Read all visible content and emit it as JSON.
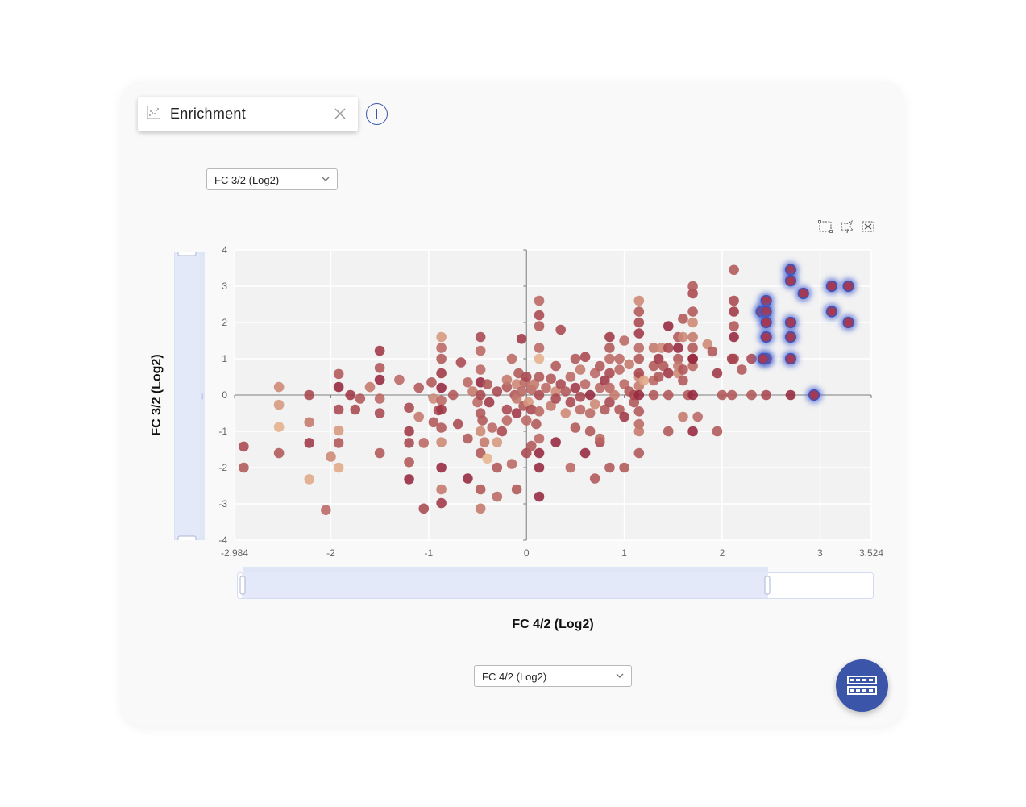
{
  "tab": {
    "label": "Enrichment",
    "icon": "scatter-chart-icon",
    "close_icon": "close-icon"
  },
  "add_tab_icon": "plus-circle-icon",
  "y_select": {
    "value": "FC 3/2 (Log2)"
  },
  "x_select": {
    "value": "FC 4/2 (Log2)"
  },
  "toolbar": {
    "icons": [
      "box-select-icon",
      "lasso-select-icon",
      "clear-selection-icon"
    ]
  },
  "fab_icon": "table-view-icon",
  "colors": {
    "accent": "#3b55a9",
    "point_dark": "#8c1734",
    "point_light": "#e9b78f",
    "highlight": "#4b63d0"
  },
  "range_sliders": {
    "x_selected": [
      0,
      0.83
    ],
    "y_selected": [
      0,
      1
    ]
  },
  "chart_data": {
    "type": "scatter",
    "xlabel": "FC 4/2 (Log2)",
    "ylabel": "FC 3/2 (Log2)",
    "xlim": [
      -2.984,
      3.524
    ],
    "ylim": [
      -4,
      4
    ],
    "xticks": [
      "-2.984",
      "-2",
      "-1",
      "0",
      "1",
      "2",
      "3",
      "3.524"
    ],
    "yticks": [
      "4",
      "3",
      "2",
      "1",
      "0",
      "-1",
      "-2",
      "-3",
      "-4"
    ],
    "grid": true,
    "points": [
      [
        -2.89,
        -1.42,
        0.7
      ],
      [
        -2.89,
        -2.0,
        0.6
      ],
      [
        -2.53,
        0.22,
        0.3
      ],
      [
        -2.53,
        -0.27,
        0.2
      ],
      [
        -2.53,
        -0.88,
        0.05
      ],
      [
        -2.53,
        -1.6,
        0.6
      ],
      [
        -2.22,
        0.0,
        0.7
      ],
      [
        -2.22,
        -0.75,
        0.4
      ],
      [
        -2.22,
        -1.32,
        0.8
      ],
      [
        -2.22,
        -2.32,
        0.1
      ],
      [
        -2.05,
        -3.17,
        0.5
      ],
      [
        -2.0,
        -1.7,
        0.3
      ],
      [
        -1.92,
        0.58,
        0.6
      ],
      [
        -1.92,
        0.22,
        0.9
      ],
      [
        -1.92,
        -0.4,
        0.7
      ],
      [
        -1.92,
        -0.98,
        0.2
      ],
      [
        -1.92,
        -1.32,
        0.6
      ],
      [
        -1.92,
        -2.0,
        0.1
      ],
      [
        -1.8,
        0.0,
        0.8
      ],
      [
        -1.75,
        -0.4,
        0.7
      ],
      [
        -1.7,
        -0.1,
        0.6
      ],
      [
        -1.6,
        0.22,
        0.4
      ],
      [
        -1.5,
        1.22,
        0.8
      ],
      [
        -1.5,
        0.75,
        0.6
      ],
      [
        -1.5,
        0.42,
        0.9
      ],
      [
        -1.5,
        -0.1,
        0.5
      ],
      [
        -1.5,
        -0.5,
        0.7
      ],
      [
        -1.5,
        -1.6,
        0.6
      ],
      [
        -1.3,
        0.42,
        0.5
      ],
      [
        -1.2,
        -0.35,
        0.7
      ],
      [
        -1.2,
        -1.0,
        0.8
      ],
      [
        -1.2,
        -1.32,
        0.7
      ],
      [
        -1.2,
        -1.85,
        0.6
      ],
      [
        -1.2,
        -2.32,
        0.9
      ],
      [
        -1.1,
        0.2,
        0.6
      ],
      [
        -1.1,
        -0.6,
        0.4
      ],
      [
        -1.05,
        -1.32,
        0.5
      ],
      [
        -1.05,
        -3.13,
        0.7
      ],
      [
        -0.97,
        0.35,
        0.6
      ],
      [
        -0.95,
        -0.1,
        0.3
      ],
      [
        -0.95,
        -0.75,
        0.6
      ],
      [
        -0.9,
        -0.42,
        0.7
      ],
      [
        -0.87,
        1.6,
        0.2
      ],
      [
        -0.87,
        1.3,
        0.5
      ],
      [
        -0.87,
        1.0,
        0.6
      ],
      [
        -0.87,
        0.6,
        0.8
      ],
      [
        -0.87,
        0.2,
        0.9
      ],
      [
        -0.87,
        -0.15,
        0.5
      ],
      [
        -0.87,
        -0.4,
        0.8
      ],
      [
        -0.87,
        -0.9,
        0.6
      ],
      [
        -0.87,
        -1.3,
        0.3
      ],
      [
        -0.87,
        -2.0,
        0.9
      ],
      [
        -0.87,
        -2.6,
        0.4
      ],
      [
        -0.87,
        -2.98,
        0.8
      ],
      [
        -0.75,
        0.0,
        0.6
      ],
      [
        -0.7,
        -0.8,
        0.7
      ],
      [
        -0.67,
        0.9,
        0.7
      ],
      [
        -0.6,
        -1.2,
        0.6
      ],
      [
        -0.6,
        0.35,
        0.5
      ],
      [
        -0.55,
        0.1,
        0.4
      ],
      [
        -0.5,
        -0.2,
        0.5
      ],
      [
        -0.45,
        -0.7,
        0.6
      ],
      [
        -0.43,
        -1.3,
        0.4
      ],
      [
        -0.6,
        -2.3,
        0.9
      ],
      [
        -0.47,
        0.7,
        0.5
      ],
      [
        -0.47,
        0.35,
        0.9
      ],
      [
        -0.47,
        0.0,
        0.7
      ],
      [
        -0.47,
        -0.5,
        0.6
      ],
      [
        -0.47,
        -1.0,
        0.3
      ],
      [
        -0.47,
        -1.6,
        0.6
      ],
      [
        -0.47,
        -2.6,
        0.6
      ],
      [
        -0.47,
        -3.13,
        0.4
      ],
      [
        -0.47,
        1.22,
        0.5
      ],
      [
        -0.47,
        1.6,
        0.7
      ],
      [
        -0.4,
        0.3,
        0.6
      ],
      [
        -0.38,
        -0.2,
        0.8
      ],
      [
        -0.35,
        -0.9,
        0.5
      ],
      [
        -0.3,
        0.1,
        0.7
      ],
      [
        -0.3,
        -1.3,
        0.2
      ],
      [
        -0.4,
        -1.75,
        0.02
      ],
      [
        -0.3,
        -2.0,
        0.6
      ],
      [
        -0.3,
        -2.8,
        0.5
      ],
      [
        -0.25,
        -1.0,
        0.7
      ],
      [
        -0.2,
        0.22,
        0.6
      ],
      [
        -0.2,
        0.42,
        0.4
      ],
      [
        -0.2,
        -0.4,
        0.7
      ],
      [
        -0.2,
        -0.7,
        0.5
      ],
      [
        -0.15,
        1.0,
        0.5
      ],
      [
        -0.15,
        -1.9,
        0.5
      ],
      [
        -0.12,
        0.0,
        0.6
      ],
      [
        -0.1,
        0.3,
        0.3
      ],
      [
        -0.1,
        -0.5,
        0.8
      ],
      [
        -0.1,
        -0.1,
        0.4
      ],
      [
        -0.1,
        -2.6,
        0.6
      ],
      [
        -0.08,
        0.6,
        0.6
      ],
      [
        -0.05,
        1.55,
        0.8
      ],
      [
        -0.05,
        0.1,
        0.5
      ],
      [
        -0.03,
        -0.3,
        0.6
      ],
      [
        -0.02,
        0.35,
        0.5
      ],
      [
        0.0,
        0.5,
        0.7
      ],
      [
        0.0,
        -0.7,
        0.5
      ],
      [
        0.0,
        -1.6,
        0.7
      ],
      [
        0.02,
        -0.2,
        0.2
      ],
      [
        0.05,
        0.15,
        0.5
      ],
      [
        0.05,
        -0.4,
        0.7
      ],
      [
        0.05,
        -1.4,
        0.6
      ],
      [
        0.08,
        0.3,
        0.4
      ],
      [
        0.1,
        -0.8,
        0.6
      ],
      [
        0.13,
        1.0,
        0.05
      ],
      [
        0.13,
        0.5,
        0.6
      ],
      [
        0.13,
        0.0,
        0.7
      ],
      [
        0.13,
        -0.45,
        0.5
      ],
      [
        0.13,
        -1.2,
        0.5
      ],
      [
        0.13,
        -2.0,
        0.9
      ],
      [
        0.13,
        -2.8,
        0.9
      ],
      [
        0.13,
        1.3,
        0.5
      ],
      [
        0.13,
        1.9,
        0.6
      ],
      [
        0.13,
        2.2,
        0.7
      ],
      [
        0.13,
        2.6,
        0.5
      ],
      [
        0.13,
        -1.6,
        0.9
      ],
      [
        0.2,
        0.2,
        0.5
      ],
      [
        0.25,
        -0.3,
        0.4
      ],
      [
        0.25,
        0.45,
        0.6
      ],
      [
        0.3,
        0.1,
        0.3
      ],
      [
        0.3,
        -0.1,
        0.7
      ],
      [
        0.3,
        0.8,
        0.6
      ],
      [
        0.3,
        -1.3,
        0.9
      ],
      [
        0.35,
        1.8,
        0.7
      ],
      [
        0.35,
        0.3,
        0.7
      ],
      [
        0.4,
        -0.5,
        0.3
      ],
      [
        0.4,
        0.1,
        0.6
      ],
      [
        0.45,
        0.5,
        0.5
      ],
      [
        0.45,
        -0.2,
        0.7
      ],
      [
        0.45,
        -2.0,
        0.5
      ],
      [
        0.5,
        1.0,
        0.6
      ],
      [
        0.5,
        -0.9,
        0.6
      ],
      [
        0.5,
        0.2,
        0.8
      ],
      [
        0.55,
        -0.4,
        0.5
      ],
      [
        0.55,
        0.7,
        0.4
      ],
      [
        0.55,
        -0.05,
        0.7
      ],
      [
        0.6,
        -1.6,
        0.9
      ],
      [
        0.6,
        1.05,
        0.7
      ],
      [
        0.6,
        0.3,
        0.5
      ],
      [
        0.65,
        -0.5,
        0.5
      ],
      [
        0.65,
        -1.0,
        0.6
      ],
      [
        0.65,
        0.0,
        0.9
      ],
      [
        0.7,
        0.6,
        0.5
      ],
      [
        0.7,
        -0.25,
        0.3
      ],
      [
        0.7,
        -2.3,
        0.6
      ],
      [
        0.75,
        0.8,
        0.6
      ],
      [
        0.75,
        0.2,
        0.5
      ],
      [
        0.8,
        -0.4,
        0.6
      ],
      [
        0.8,
        0.4,
        0.8
      ],
      [
        0.85,
        1.6,
        0.8
      ],
      [
        0.85,
        1.3,
        0.6
      ],
      [
        0.85,
        1.0,
        0.5
      ],
      [
        0.85,
        0.6,
        0.7
      ],
      [
        0.85,
        0.2,
        0.5
      ],
      [
        0.85,
        -0.2,
        0.7
      ],
      [
        0.85,
        -2.0,
        0.6
      ],
      [
        0.9,
        0.0,
        0.4
      ],
      [
        0.95,
        -0.4,
        0.6
      ],
      [
        0.95,
        0.7,
        0.5
      ],
      [
        0.95,
        1.0,
        0.5
      ],
      [
        0.75,
        -1.3,
        0.7
      ],
      [
        0.75,
        -1.2,
        0.5
      ],
      [
        1.0,
        0.3,
        0.5
      ],
      [
        1.0,
        -0.6,
        0.8
      ],
      [
        1.0,
        1.5,
        0.5
      ],
      [
        1.05,
        0.1,
        0.6
      ],
      [
        1.05,
        0.85,
        0.4
      ],
      [
        1.1,
        -0.2,
        0.6
      ],
      [
        1.15,
        0.5,
        0.3
      ],
      [
        1.15,
        1.3,
        0.5
      ],
      [
        1.0,
        -2.0,
        0.6
      ],
      [
        1.1,
        0.0,
        0.7
      ],
      [
        1.15,
        2.6,
        0.3
      ],
      [
        1.15,
        2.3,
        0.6
      ],
      [
        1.15,
        2.0,
        0.7
      ],
      [
        1.15,
        1.7,
        0.8
      ],
      [
        1.15,
        1.0,
        0.6
      ],
      [
        1.15,
        0.6,
        0.7
      ],
      [
        1.15,
        0.25,
        0.4
      ],
      [
        1.15,
        0.0,
        0.9
      ],
      [
        1.15,
        -0.45,
        0.6
      ],
      [
        1.15,
        -0.8,
        0.5
      ],
      [
        1.15,
        -1.0,
        0.4
      ],
      [
        1.15,
        -1.6,
        0.6
      ],
      [
        1.2,
        0.4,
        0.1
      ],
      [
        1.3,
        0.0,
        0.6
      ],
      [
        1.3,
        0.8,
        0.6
      ],
      [
        1.3,
        1.3,
        0.4
      ],
      [
        1.3,
        0.4,
        0.5
      ],
      [
        1.35,
        0.5,
        0.6
      ],
      [
        1.35,
        1.0,
        0.8
      ],
      [
        1.38,
        1.3,
        0.3
      ],
      [
        1.4,
        0.8,
        0.6
      ],
      [
        1.45,
        1.3,
        0.7
      ],
      [
        1.45,
        1.9,
        0.9
      ],
      [
        1.45,
        0.0,
        0.6
      ],
      [
        1.45,
        -1.0,
        0.6
      ],
      [
        1.45,
        0.6,
        0.8
      ],
      [
        1.55,
        1.0,
        0.6
      ],
      [
        1.55,
        0.8,
        0.4
      ],
      [
        1.55,
        1.6,
        0.6
      ],
      [
        1.55,
        1.3,
        0.9
      ],
      [
        1.55,
        0.6,
        0.3
      ],
      [
        1.6,
        0.4,
        0.6
      ],
      [
        1.6,
        -0.6,
        0.4
      ],
      [
        1.6,
        1.6,
        0.3
      ],
      [
        1.65,
        0.0,
        0.6
      ],
      [
        1.7,
        1.0,
        0.7
      ],
      [
        1.7,
        1.3,
        0.6
      ],
      [
        1.7,
        0.8,
        0.5
      ],
      [
        1.6,
        2.1,
        0.6
      ],
      [
        1.7,
        2.3,
        0.6
      ],
      [
        1.7,
        1.6,
        0.4
      ],
      [
        1.7,
        2.0,
        0.3
      ],
      [
        1.7,
        2.8,
        0.7
      ],
      [
        1.7,
        3.0,
        0.6
      ],
      [
        1.7,
        1.0,
        0.9
      ],
      [
        1.7,
        0.0,
        0.9
      ],
      [
        1.7,
        -1.0,
        0.9
      ],
      [
        1.75,
        -0.6,
        0.5
      ],
      [
        1.6,
        0.7,
        0.6
      ],
      [
        1.85,
        1.4,
        0.3
      ],
      [
        1.9,
        1.2,
        0.6
      ],
      [
        1.95,
        0.6,
        0.8
      ],
      [
        1.95,
        -1.0,
        0.6
      ],
      [
        2.0,
        0.0,
        0.6
      ],
      [
        2.1,
        1.0,
        0.8
      ],
      [
        2.1,
        0.0,
        0.6
      ],
      [
        2.12,
        3.45,
        0.6
      ],
      [
        2.12,
        2.6,
        0.7
      ],
      [
        2.12,
        2.3,
        0.8
      ],
      [
        2.12,
        1.9,
        0.6
      ],
      [
        2.12,
        1.6,
        0.9
      ],
      [
        2.12,
        1.0,
        0.7
      ],
      [
        2.2,
        0.7,
        0.6
      ],
      [
        2.3,
        0.0,
        0.6
      ],
      [
        2.3,
        1.0,
        0.7
      ],
      [
        2.45,
        0.0,
        0.7
      ],
      [
        2.7,
        0.0,
        0.9
      ]
    ],
    "selected_points": [
      [
        2.4,
        2.3
      ],
      [
        2.45,
        2.6
      ],
      [
        2.45,
        2.3
      ],
      [
        2.45,
        2.0
      ],
      [
        2.45,
        1.6
      ],
      [
        2.45,
        1.0
      ],
      [
        2.42,
        1.0
      ],
      [
        2.7,
        3.45
      ],
      [
        2.7,
        3.15
      ],
      [
        2.83,
        2.8
      ],
      [
        2.7,
        2.0
      ],
      [
        2.7,
        1.6
      ],
      [
        2.7,
        1.0
      ],
      [
        2.94,
        0.0
      ],
      [
        3.12,
        3.0
      ],
      [
        3.12,
        2.3
      ],
      [
        3.29,
        3.0
      ],
      [
        3.29,
        2.0
      ]
    ]
  }
}
